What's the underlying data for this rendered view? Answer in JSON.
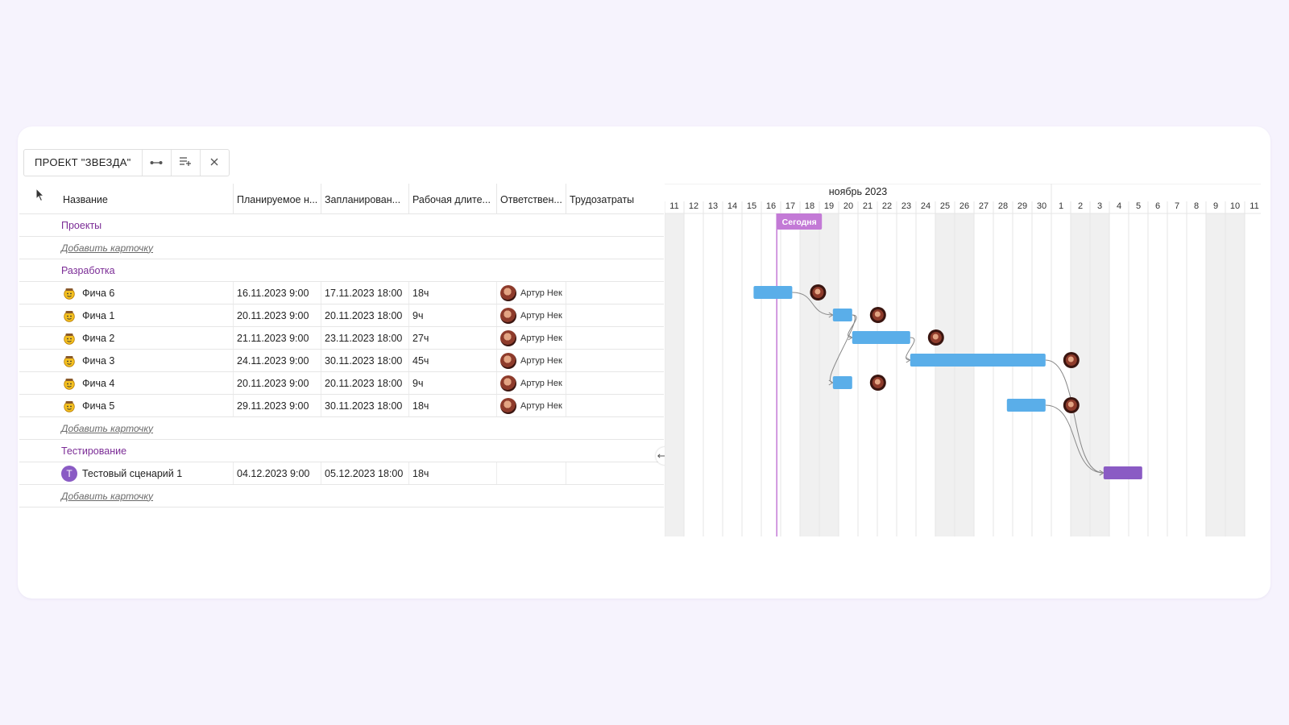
{
  "toolbar": {
    "project_title": "ПРОЕКТ \"ЗВЕЗДА\"",
    "buttons": [
      "link-icon",
      "add-row-icon",
      "close-icon"
    ]
  },
  "columns": [
    "Название",
    "Планируемое н...",
    "Запланирован...",
    "Рабочая длите...",
    "Ответствен...",
    "Трудозатраты"
  ],
  "groups": {
    "projects": {
      "label": "Проекты",
      "add_label": "Добавить карточку"
    },
    "development": {
      "label": "Разработка",
      "add_label": "Добавить карточку"
    },
    "testing": {
      "label": "Тестирование",
      "add_label": "Добавить карточку"
    }
  },
  "tasks": [
    {
      "name": "Фича 6",
      "start": "16.11.2023 9:00",
      "end": "17.11.2023 18:00",
      "duration": "18ч",
      "assignee": "Артур Нек"
    },
    {
      "name": "Фича 1",
      "start": "20.11.2023 9:00",
      "end": "20.11.2023 18:00",
      "duration": "9ч",
      "assignee": "Артур Нек"
    },
    {
      "name": "Фича 2",
      "start": "21.11.2023 9:00",
      "end": "23.11.2023 18:00",
      "duration": "27ч",
      "assignee": "Артур Нек"
    },
    {
      "name": "Фича 3",
      "start": "24.11.2023 9:00",
      "end": "30.11.2023 18:00",
      "duration": "45ч",
      "assignee": "Артур Нек"
    },
    {
      "name": "Фича 4",
      "start": "20.11.2023 9:00",
      "end": "20.11.2023 18:00",
      "duration": "9ч",
      "assignee": "Артур Нек"
    },
    {
      "name": "Фича 5",
      "start": "29.11.2023 9:00",
      "end": "30.11.2023 18:00",
      "duration": "18ч",
      "assignee": "Артур Нек"
    }
  ],
  "test_task": {
    "name": "Тестовый сценарий 1",
    "avatar_letter": "Т",
    "start": "04.12.2023 9:00",
    "end": "05.12.2023 18:00",
    "duration": "18ч",
    "assignee": ""
  },
  "gantt": {
    "month_label": "ноябрь 2023",
    "today_label": "Сегодня",
    "days": [
      "11",
      "12",
      "13",
      "14",
      "15",
      "16",
      "17",
      "18",
      "19",
      "20",
      "21",
      "22",
      "23",
      "24",
      "25",
      "26",
      "27",
      "28",
      "29",
      "30",
      "1",
      "2",
      "3",
      "4",
      "5",
      "6",
      "7",
      "8",
      "9",
      "10",
      "11"
    ],
    "weekend_day_indexes": [
      0,
      7,
      8,
      14,
      15,
      21,
      22,
      28,
      29
    ],
    "today_index": 5,
    "bars": [
      {
        "row": 3,
        "start": 4.6,
        "end": 6.6,
        "color": "#5aaee9",
        "avatar": true
      },
      {
        "row": 4,
        "start": 8.7,
        "end": 9.7,
        "color": "#5aaee9",
        "avatar": true
      },
      {
        "row": 5,
        "start": 9.7,
        "end": 12.7,
        "color": "#5aaee9",
        "avatar": true
      },
      {
        "row": 6,
        "start": 12.7,
        "end": 19.7,
        "color": "#5aaee9",
        "avatar": true
      },
      {
        "row": 7,
        "start": 8.7,
        "end": 9.7,
        "color": "#5aaee9",
        "avatar": true
      },
      {
        "row": 8,
        "start": 17.7,
        "end": 19.7,
        "color": "#5aaee9",
        "avatar": true
      },
      {
        "row": 11,
        "start": 22.7,
        "end": 24.7,
        "color": "#8a5bc4",
        "avatar": false
      }
    ],
    "links": [
      [
        0,
        1
      ],
      [
        1,
        2
      ],
      [
        1,
        4
      ],
      [
        2,
        3
      ],
      [
        3,
        6
      ],
      [
        5,
        6
      ]
    ],
    "colors": {
      "accent": "#7b2c96",
      "today": "#c37ad6",
      "bar": "#5aaee9",
      "test_bar": "#8a5bc4",
      "weekend": "#f0f0f0"
    }
  }
}
